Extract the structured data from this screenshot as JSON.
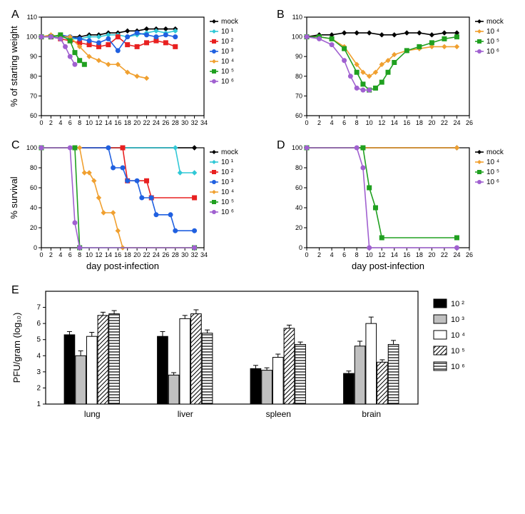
{
  "colors": {
    "mock": "#000000",
    "e1": "#30c8d6",
    "e2": "#e82020",
    "e3": "#2060e0",
    "e4": "#f0a030",
    "e5": "#20a020",
    "e6": "#a060d0",
    "axis": "#000000",
    "bg": "#ffffff",
    "bar_e2": "#000000",
    "bar_e3": "#c0c0c0",
    "bar_e4": "#ffffff",
    "bar_e5_hatch": "/",
    "bar_e6_hatch": "="
  },
  "typography": {
    "axis_label_fontsize": 13,
    "tick_fontsize": 10,
    "legend_fontsize": 10,
    "panel_label_fontsize": 16
  },
  "panelA": {
    "type": "line",
    "title": "A",
    "x": {
      "label": "",
      "min": 0,
      "max": 34,
      "tick_step": 2
    },
    "y": {
      "label": "% of starting weight",
      "min": 60,
      "max": 110,
      "tick_step": 10
    },
    "series": [
      {
        "key": "mock",
        "label": "mock",
        "marker": "diamond",
        "data": [
          [
            0,
            100
          ],
          [
            2,
            100
          ],
          [
            4,
            100
          ],
          [
            6,
            100
          ],
          [
            8,
            100
          ],
          [
            10,
            101
          ],
          [
            12,
            101
          ],
          [
            14,
            102
          ],
          [
            16,
            102
          ],
          [
            18,
            103
          ],
          [
            20,
            103
          ],
          [
            22,
            104
          ],
          [
            24,
            104
          ],
          [
            26,
            104
          ],
          [
            28,
            104
          ]
        ]
      },
      {
        "key": "e1",
        "label": "10¹",
        "marker": "diamond",
        "data": [
          [
            0,
            100
          ],
          [
            2,
            100
          ],
          [
            4,
            100
          ],
          [
            6,
            99
          ],
          [
            8,
            99
          ],
          [
            10,
            100
          ],
          [
            12,
            100
          ],
          [
            14,
            101
          ],
          [
            16,
            101
          ],
          [
            18,
            100
          ],
          [
            20,
            101
          ],
          [
            22,
            102
          ],
          [
            24,
            103
          ],
          [
            26,
            102
          ],
          [
            28,
            103
          ]
        ]
      },
      {
        "key": "e2",
        "label": "10²",
        "marker": "square",
        "data": [
          [
            0,
            100
          ],
          [
            2,
            100
          ],
          [
            4,
            99
          ],
          [
            6,
            98
          ],
          [
            8,
            97
          ],
          [
            10,
            96
          ],
          [
            12,
            95
          ],
          [
            14,
            96
          ],
          [
            16,
            100
          ],
          [
            18,
            96
          ],
          [
            20,
            95
          ],
          [
            22,
            97
          ],
          [
            24,
            98
          ],
          [
            26,
            97
          ],
          [
            28,
            95
          ]
        ]
      },
      {
        "key": "e3",
        "label": "10³",
        "marker": "circle",
        "data": [
          [
            0,
            100
          ],
          [
            2,
            100
          ],
          [
            4,
            101
          ],
          [
            6,
            100
          ],
          [
            8,
            99
          ],
          [
            10,
            98
          ],
          [
            12,
            97
          ],
          [
            14,
            99
          ],
          [
            16,
            93
          ],
          [
            18,
            100
          ],
          [
            20,
            102
          ],
          [
            22,
            101
          ],
          [
            24,
            100
          ],
          [
            26,
            101
          ],
          [
            28,
            100
          ]
        ]
      },
      {
        "key": "e4",
        "label": "10⁴",
        "marker": "diamond",
        "data": [
          [
            0,
            100
          ],
          [
            2,
            101
          ],
          [
            4,
            100
          ],
          [
            6,
            100
          ],
          [
            8,
            95
          ],
          [
            10,
            90
          ],
          [
            12,
            88
          ],
          [
            14,
            86
          ],
          [
            16,
            86
          ],
          [
            18,
            82
          ],
          [
            20,
            80
          ],
          [
            22,
            79
          ]
        ]
      },
      {
        "key": "e5",
        "label": "10⁵",
        "marker": "square",
        "data": [
          [
            0,
            100
          ],
          [
            2,
            100
          ],
          [
            4,
            101
          ],
          [
            6,
            98
          ],
          [
            7,
            92
          ],
          [
            8,
            88
          ],
          [
            9,
            86
          ]
        ]
      },
      {
        "key": "e6",
        "label": "10⁶",
        "marker": "circle",
        "data": [
          [
            0,
            100
          ],
          [
            2,
            100
          ],
          [
            4,
            99
          ],
          [
            5,
            95
          ],
          [
            6,
            90
          ],
          [
            7,
            86
          ]
        ]
      }
    ]
  },
  "panelB": {
    "type": "line",
    "title": "B",
    "x": {
      "label": "",
      "min": 0,
      "max": 26,
      "tick_step": 2
    },
    "y": {
      "label": "",
      "min": 60,
      "max": 110,
      "tick_step": 10
    },
    "series": [
      {
        "key": "mock",
        "label": "mock",
        "marker": "diamond",
        "data": [
          [
            0,
            100
          ],
          [
            2,
            101
          ],
          [
            4,
            101
          ],
          [
            6,
            102
          ],
          [
            8,
            102
          ],
          [
            10,
            102
          ],
          [
            12,
            101
          ],
          [
            14,
            101
          ],
          [
            16,
            102
          ],
          [
            18,
            102
          ],
          [
            20,
            101
          ],
          [
            22,
            102
          ],
          [
            24,
            102
          ]
        ]
      },
      {
        "key": "e4",
        "label": "10⁴",
        "marker": "diamond",
        "data": [
          [
            0,
            100
          ],
          [
            2,
            100
          ],
          [
            4,
            99
          ],
          [
            6,
            95
          ],
          [
            8,
            86
          ],
          [
            9,
            82
          ],
          [
            10,
            80
          ],
          [
            11,
            82
          ],
          [
            12,
            86
          ],
          [
            13,
            88
          ],
          [
            14,
            91
          ],
          [
            16,
            93
          ],
          [
            18,
            94
          ],
          [
            20,
            95
          ],
          [
            22,
            95
          ],
          [
            24,
            95
          ]
        ]
      },
      {
        "key": "e5",
        "label": "10⁵",
        "marker": "square",
        "data": [
          [
            0,
            100
          ],
          [
            2,
            100
          ],
          [
            4,
            99
          ],
          [
            6,
            94
          ],
          [
            8,
            82
          ],
          [
            9,
            76
          ],
          [
            10,
            73
          ],
          [
            11,
            74
          ],
          [
            12,
            77
          ],
          [
            13,
            82
          ],
          [
            14,
            87
          ],
          [
            16,
            93
          ],
          [
            18,
            95
          ],
          [
            20,
            97
          ],
          [
            22,
            99
          ],
          [
            24,
            100
          ]
        ]
      },
      {
        "key": "e6",
        "label": "10⁶",
        "marker": "circle",
        "data": [
          [
            0,
            100
          ],
          [
            2,
            99
          ],
          [
            4,
            96
          ],
          [
            6,
            88
          ],
          [
            7,
            80
          ],
          [
            8,
            74
          ],
          [
            9,
            73
          ],
          [
            10,
            73
          ]
        ]
      }
    ]
  },
  "panelC": {
    "type": "step-line",
    "title": "C",
    "x": {
      "label": "day post-infection",
      "min": 0,
      "max": 34,
      "tick_step": 2
    },
    "y": {
      "label": "% survival",
      "min": 0,
      "max": 100,
      "tick_step": 20
    },
    "series": [
      {
        "key": "mock",
        "label": "mock",
        "marker": "diamond",
        "data": [
          [
            0,
            100
          ],
          [
            32,
            100
          ]
        ]
      },
      {
        "key": "e1",
        "label": "10¹",
        "marker": "diamond",
        "data": [
          [
            0,
            100
          ],
          [
            28,
            100
          ],
          [
            29,
            75
          ],
          [
            32,
            75
          ]
        ]
      },
      {
        "key": "e2",
        "label": "10²",
        "marker": "square",
        "data": [
          [
            0,
            100
          ],
          [
            17,
            100
          ],
          [
            18,
            67
          ],
          [
            22,
            67
          ],
          [
            23,
            50
          ],
          [
            32,
            50
          ]
        ]
      },
      {
        "key": "e3",
        "label": "10³",
        "marker": "circle",
        "data": [
          [
            0,
            100
          ],
          [
            14,
            100
          ],
          [
            15,
            80
          ],
          [
            17,
            80
          ],
          [
            18,
            67
          ],
          [
            20,
            67
          ],
          [
            21,
            50
          ],
          [
            23,
            50
          ],
          [
            24,
            33
          ],
          [
            27,
            33
          ],
          [
            28,
            17
          ],
          [
            32,
            17
          ]
        ]
      },
      {
        "key": "e4",
        "label": "10⁴",
        "marker": "diamond",
        "data": [
          [
            0,
            100
          ],
          [
            8,
            100
          ],
          [
            9,
            75
          ],
          [
            10,
            75
          ],
          [
            11,
            67
          ],
          [
            12,
            50
          ],
          [
            13,
            35
          ],
          [
            15,
            35
          ],
          [
            16,
            17
          ],
          [
            17,
            0
          ],
          [
            32,
            0
          ]
        ]
      },
      {
        "key": "e5",
        "label": "10⁵",
        "marker": "square",
        "data": [
          [
            0,
            100
          ],
          [
            7,
            100
          ],
          [
            8,
            0
          ],
          [
            32,
            0
          ]
        ]
      },
      {
        "key": "e6",
        "label": "10⁶",
        "marker": "circle",
        "data": [
          [
            0,
            100
          ],
          [
            6,
            100
          ],
          [
            7,
            25
          ],
          [
            8,
            0
          ],
          [
            32,
            0
          ]
        ]
      }
    ]
  },
  "panelD": {
    "type": "step-line",
    "title": "D",
    "x": {
      "label": "day post-infection",
      "min": 0,
      "max": 26,
      "tick_step": 2
    },
    "y": {
      "label": "",
      "min": 0,
      "max": 100,
      "tick_step": 20
    },
    "series": [
      {
        "key": "mock",
        "label": "mock",
        "marker": "diamond",
        "data": [
          [
            0,
            100
          ],
          [
            24,
            100
          ]
        ]
      },
      {
        "key": "e4",
        "label": "10⁴",
        "marker": "diamond",
        "data": [
          [
            0,
            100
          ],
          [
            24,
            100
          ]
        ]
      },
      {
        "key": "e5",
        "label": "10⁵",
        "marker": "square",
        "data": [
          [
            0,
            100
          ],
          [
            9,
            100
          ],
          [
            10,
            60
          ],
          [
            11,
            40
          ],
          [
            12,
            10
          ],
          [
            24,
            10
          ]
        ]
      },
      {
        "key": "e6",
        "label": "10⁶",
        "marker": "circle",
        "data": [
          [
            0,
            100
          ],
          [
            8,
            100
          ],
          [
            9,
            80
          ],
          [
            10,
            0
          ],
          [
            24,
            0
          ]
        ]
      }
    ]
  },
  "panelE": {
    "type": "grouped-bar",
    "title": "E",
    "x": {
      "label": "",
      "categories": [
        "lung",
        "liver",
        "spleen",
        "brain"
      ]
    },
    "y": {
      "label": "PFU/gram (log₁₀)",
      "min": 1,
      "max": 8,
      "ticks": [
        1,
        2,
        3,
        4,
        5,
        6,
        7
      ]
    },
    "groups": [
      {
        "key": "e2",
        "label": "10²",
        "fill": "#000000",
        "pattern": null,
        "values": [
          5.3,
          5.2,
          3.2,
          2.9
        ],
        "err": [
          0.2,
          0.3,
          0.2,
          0.15
        ]
      },
      {
        "key": "e3",
        "label": "10³",
        "fill": "#c0c0c0",
        "pattern": null,
        "values": [
          4.0,
          2.8,
          3.1,
          4.6
        ],
        "err": [
          0.3,
          0.15,
          0.15,
          0.3
        ]
      },
      {
        "key": "e4",
        "label": "10⁴",
        "fill": "#ffffff",
        "pattern": null,
        "values": [
          5.2,
          6.3,
          3.9,
          6.0
        ],
        "err": [
          0.25,
          0.2,
          0.2,
          0.4
        ]
      },
      {
        "key": "e5",
        "label": "10⁵",
        "fill": "#ffffff",
        "pattern": "diag",
        "values": [
          6.5,
          6.6,
          5.7,
          3.6
        ],
        "err": [
          0.2,
          0.25,
          0.2,
          0.15
        ]
      },
      {
        "key": "e6",
        "label": "10⁶",
        "fill": "#ffffff",
        "pattern": "horiz",
        "values": [
          6.6,
          5.4,
          4.7,
          4.7
        ],
        "err": [
          0.2,
          0.2,
          0.15,
          0.25
        ]
      }
    ],
    "bar_width": 0.16,
    "group_gap": 0.3
  },
  "legends": {
    "A_and_C": [
      "mock",
      "e1",
      "e2",
      "e3",
      "e4",
      "e5",
      "e6"
    ],
    "B_and_D": [
      "mock",
      "e4",
      "e5",
      "e6"
    ],
    "E": [
      "e2",
      "e3",
      "e4",
      "e5",
      "e6"
    ]
  },
  "legend_labels": {
    "mock": "mock",
    "e1": "10 ¹",
    "e2": "10 ²",
    "e3": "10 ³",
    "e4": "10 ⁴",
    "e5": "10 ⁵",
    "e6": "10 ⁶"
  }
}
